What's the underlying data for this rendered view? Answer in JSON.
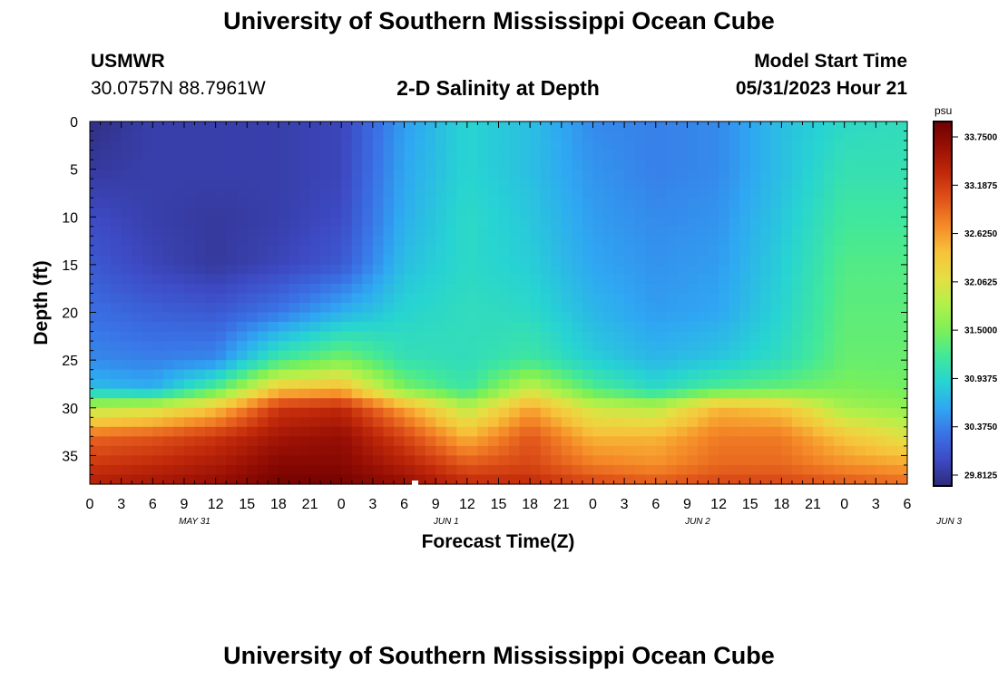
{
  "title": "University of Southern Mississippi Ocean Cube",
  "bottom_title": "University of Southern Mississippi Ocean Cube",
  "station": {
    "name": "USMWR",
    "coords": "30.0757N  88.7961W"
  },
  "plot_title": "2-D Salinity at Depth",
  "model_start": {
    "label": "Model Start Time",
    "value": "05/31/2023 Hour 21"
  },
  "colorbar": {
    "unit": "psu",
    "ticks": [
      "33.7500",
      "33.1875",
      "32.6250",
      "32.0625",
      "31.5000",
      "30.9375",
      "30.3750",
      "29.8125"
    ],
    "colors": [
      "#6e0000",
      "#9a1005",
      "#c22a0a",
      "#e0541a",
      "#f58a28",
      "#f7c23a",
      "#e6de42",
      "#b4f04a",
      "#7df056",
      "#42e89a",
      "#27d4d2",
      "#2fa8f2",
      "#3a72e6",
      "#3d4ac4",
      "#2e2a78"
    ]
  },
  "chart_data": {
    "type": "heatmap",
    "title": "2-D Salinity at Depth",
    "xlabel": "Forecast Time(Z)",
    "ylabel": "Depth (ft)",
    "x_tick_labels": [
      "0",
      "3",
      "6",
      "9",
      "12",
      "15",
      "18",
      "21",
      "0",
      "3",
      "6",
      "9",
      "12",
      "15",
      "18",
      "21",
      "0",
      "3",
      "6",
      "9",
      "12",
      "15",
      "18",
      "21",
      "0",
      "3",
      "6"
    ],
    "x_date_labels": [
      "MAY 31",
      "JUN 1",
      "JUN 2",
      "JUN 3"
    ],
    "x_range_hours": [
      0,
      78
    ],
    "y_tick_labels": [
      "0",
      "5",
      "10",
      "15",
      "20",
      "25",
      "30",
      "35"
    ],
    "ylim": [
      0,
      38
    ],
    "unit": "psu",
    "value_range": [
      29.8125,
      33.75
    ],
    "grid_hours": [
      0,
      6,
      12,
      18,
      24,
      30,
      36,
      42,
      48,
      54,
      60,
      66,
      72,
      78
    ],
    "grid_depths": [
      0,
      5,
      10,
      15,
      20,
      25,
      28,
      30,
      33,
      36,
      38
    ],
    "values": [
      [
        29.85,
        30.0,
        30.0,
        30.0,
        30.05,
        30.6,
        30.95,
        30.8,
        30.5,
        30.45,
        30.5,
        30.8,
        31.0,
        31.05
      ],
      [
        29.95,
        30.0,
        30.0,
        30.0,
        30.05,
        30.65,
        30.95,
        30.8,
        30.55,
        30.45,
        30.5,
        30.8,
        31.1,
        31.1
      ],
      [
        30.1,
        30.0,
        29.95,
        30.0,
        30.1,
        30.7,
        31.0,
        30.85,
        30.6,
        30.5,
        30.55,
        30.85,
        31.2,
        31.2
      ],
      [
        30.2,
        30.05,
        29.95,
        30.05,
        30.2,
        30.8,
        31.0,
        30.9,
        30.65,
        30.55,
        30.6,
        30.9,
        31.3,
        31.3
      ],
      [
        30.35,
        30.25,
        30.2,
        30.4,
        30.7,
        30.95,
        31.05,
        31.0,
        30.75,
        30.6,
        30.65,
        30.95,
        31.35,
        31.35
      ],
      [
        30.5,
        30.45,
        30.5,
        31.2,
        31.5,
        31.1,
        31.05,
        31.2,
        30.9,
        30.75,
        30.85,
        31.05,
        31.4,
        31.4
      ],
      [
        30.8,
        30.7,
        31.3,
        32.3,
        32.4,
        31.5,
        31.15,
        31.9,
        31.3,
        31.0,
        31.3,
        31.4,
        31.5,
        31.45
      ],
      [
        31.8,
        31.9,
        32.3,
        33.1,
        33.2,
        32.5,
        31.8,
        32.5,
        31.9,
        31.8,
        32.4,
        32.3,
        31.7,
        31.6
      ],
      [
        32.8,
        32.9,
        33.1,
        33.4,
        33.5,
        33.0,
        32.4,
        32.9,
        32.4,
        32.4,
        32.7,
        32.7,
        32.3,
        32.0
      ],
      [
        33.1,
        33.2,
        33.35,
        33.6,
        33.6,
        33.3,
        32.9,
        33.0,
        32.7,
        32.6,
        32.8,
        32.8,
        32.6,
        32.5
      ],
      [
        33.3,
        33.4,
        33.5,
        33.7,
        33.7,
        33.5,
        33.2,
        33.2,
        33.0,
        32.9,
        33.0,
        33.0,
        32.9,
        32.8
      ]
    ]
  }
}
